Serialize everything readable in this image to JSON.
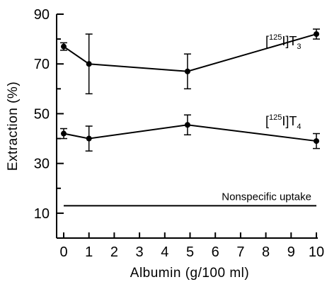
{
  "chart_data": {
    "type": "line",
    "xlabel": "Albumin (g/100 ml)",
    "ylabel": "Extraction (%)",
    "xlim": [
      0,
      10
    ],
    "ylim": [
      0,
      90
    ],
    "x_ticks": [
      0,
      1,
      2,
      3,
      4,
      5,
      6,
      7,
      8,
      9,
      10
    ],
    "y_ticks": [
      10,
      30,
      50,
      70,
      90
    ],
    "grid": false,
    "series": [
      {
        "name": "[125I]T3",
        "name_parts": {
          "open": "[",
          "iso": "125",
          "elem": "I",
          "close": "]",
          "base": "T",
          "sub": "3"
        },
        "x": [
          0,
          1,
          4.9,
          10
        ],
        "y": [
          77,
          70,
          67,
          82
        ],
        "err": [
          1.5,
          12,
          7,
          2
        ]
      },
      {
        "name": "[125I]T4",
        "name_parts": {
          "open": "[",
          "iso": "125",
          "elem": "I",
          "close": "]",
          "base": "T",
          "sub": "4"
        },
        "x": [
          0,
          1,
          4.9,
          10
        ],
        "y": [
          42,
          40,
          45.5,
          39
        ],
        "err": [
          2,
          5,
          4,
          3
        ]
      }
    ],
    "reference_line": {
      "label": "Nonspecific uptake",
      "y": 13,
      "x": [
        0,
        10
      ]
    }
  }
}
